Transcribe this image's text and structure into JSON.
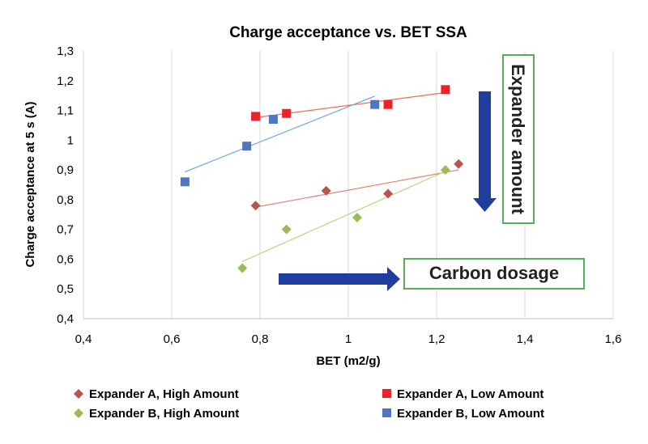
{
  "chart_data": {
    "type": "scatter",
    "title": "Charge acceptance vs. BET SSA",
    "xlabel": "BET (m2/g)",
    "ylabel": "Charge acceptance at 5 s (A)",
    "xlim": [
      0.4,
      1.6
    ],
    "ylim": [
      0.4,
      1.3
    ],
    "xticks": [
      "0,4",
      "0,6",
      "0,8",
      "1",
      "1,2",
      "1,4",
      "1,6"
    ],
    "yticks": [
      "0,4",
      "0,5",
      "0,6",
      "0,7",
      "0,8",
      "0,9",
      "1",
      "1,1",
      "1,2",
      "1,3"
    ],
    "grid": "vertical",
    "legend_position": "bottom",
    "series": [
      {
        "name": "Expander A, High Amount",
        "marker": "diamond",
        "color": "#b85450",
        "trend_color": "#d9826f",
        "points": [
          [
            0.79,
            0.78
          ],
          [
            0.95,
            0.83
          ],
          [
            1.09,
            0.82
          ],
          [
            1.25,
            0.92
          ]
        ]
      },
      {
        "name": "Expander A, Low Amount",
        "marker": "square",
        "color": "#e8232a",
        "trend_color": "#ef6a5c",
        "points": [
          [
            0.79,
            1.08
          ],
          [
            0.86,
            1.09
          ],
          [
            1.09,
            1.12
          ],
          [
            1.22,
            1.17
          ]
        ]
      },
      {
        "name": "Expander B, High Amount",
        "marker": "diamond",
        "color": "#9bbb59",
        "trend_color": "#b9d67e",
        "points": [
          [
            0.76,
            0.57
          ],
          [
            0.86,
            0.7
          ],
          [
            1.02,
            0.74
          ],
          [
            1.22,
            0.9
          ]
        ]
      },
      {
        "name": "Expander B, Low Amount",
        "marker": "square",
        "color": "#4f76c0",
        "trend_color": "#6aa6e0",
        "points": [
          [
            0.63,
            0.86
          ],
          [
            0.77,
            0.98
          ],
          [
            0.83,
            1.07
          ],
          [
            1.06,
            1.12
          ]
        ]
      }
    ],
    "annotations": {
      "vertical_arrow_label": "Expander amount",
      "horizontal_arrow_label": "Carbon dosage",
      "arrow_color": "#1f3e9e",
      "box_border_color": "#5aab5a"
    }
  }
}
